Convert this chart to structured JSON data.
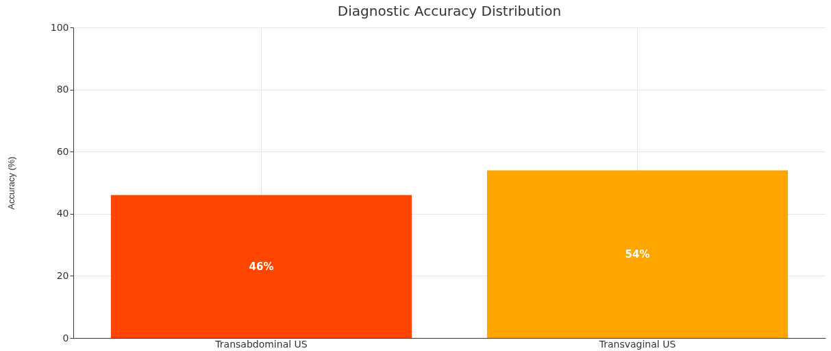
{
  "chart_data": {
    "type": "bar",
    "title": "Diagnostic Accuracy Distribution",
    "ylabel": "Accuracy (%)",
    "categories": [
      "Transabdominal US",
      "Transvaginal US"
    ],
    "values": [
      46,
      54
    ],
    "colors": [
      "#ff4500",
      "#ffa500"
    ],
    "value_labels": [
      "46%",
      "54%"
    ],
    "ylim": [
      0,
      100
    ],
    "yticks": [
      0,
      20,
      40,
      60,
      80,
      100
    ],
    "grid": true
  }
}
